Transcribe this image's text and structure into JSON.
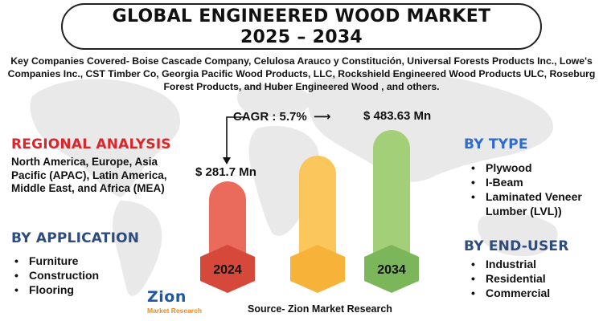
{
  "title": {
    "line1": "GLOBAL ENGINEERED WOOD MARKET",
    "line2": "2025 – 2034"
  },
  "companies_text": "Key Companies Covered- Boise Cascade Company, Celulosa Arauco y Constitución, Universal Forests Products Inc., Lowe's Companies Inc., CST Timber Co, Georgia Pacific Wood Products, LLC, Rockshield Engineered Wood Products ULC, Roseburg Forest Products, and Huber Engineered Wood , and others.",
  "regional": {
    "heading": "REGIONAL ANALYSIS",
    "text": "North America, Europe, Asia Pacific (APAC), Latin America, Middle East, and Africa (MEA)"
  },
  "application": {
    "heading": "BY APPLICATION",
    "items": [
      "Furniture",
      "Construction",
      "Flooring"
    ]
  },
  "type": {
    "heading": "BY TYPE",
    "items": [
      "Plywood",
      "I-Beam",
      "Laminated Veneer Lumber (LVL))"
    ]
  },
  "end_user": {
    "heading": "BY END-USER",
    "items": [
      "Industrial",
      "Residential",
      "Commercial"
    ]
  },
  "cagr": {
    "label": "CAGR : 5.7%",
    "arrow": "⟶"
  },
  "source": "Source- Zion Market Research",
  "logo": {
    "word": "Zion",
    "sub": "Market Research"
  },
  "colors": {
    "bar_2024": "#ea6a5c",
    "bar_mid": "#fbc65c",
    "bar_2034": "#a3cf78",
    "hex_2024": "#d6483a",
    "hex_mid": "#f7b23a",
    "hex_2034": "#7cb65a",
    "regional_heading": "#d9262b",
    "type_heading": "#2e6ad0",
    "section_heading": "#2e4d7e"
  },
  "chart_data": {
    "type": "bar",
    "categories": [
      "2024",
      "",
      "2034"
    ],
    "values": [
      281.7,
      null,
      483.63
    ],
    "value_labels": [
      "$ 281.7 Mn",
      "",
      "$ 483.63 Mn"
    ],
    "category_labels_shown": [
      "2024",
      "",
      "2034"
    ],
    "cagr": "5.7%",
    "title": "",
    "xlabel": "",
    "ylabel": ""
  }
}
